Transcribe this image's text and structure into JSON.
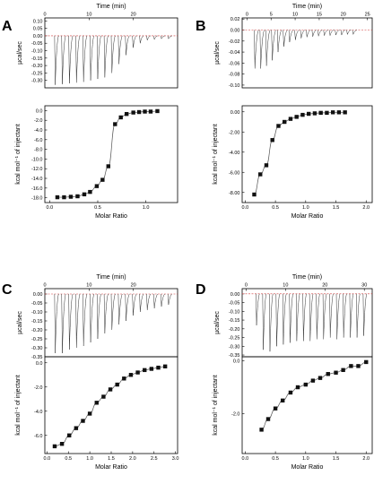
{
  "chart_data": [
    {
      "type": "scatter",
      "panel_label": "A",
      "top": {
        "xlabel": "Time (min)",
        "ylabel": "µcal/sec",
        "xlim": [
          0,
          30
        ],
        "ylim": [
          -0.35,
          0.12
        ],
        "xticks": [
          0,
          10,
          20
        ],
        "yticks": [
          0.1,
          0.05,
          0.0,
          -0.05,
          -0.1,
          -0.15,
          -0.2,
          -0.25,
          -0.3
        ],
        "ytick_labels": [
          "0.10",
          "0.05",
          "0.00",
          "-0.05",
          "-0.10",
          "-0.15",
          "-0.20",
          "-0.25",
          "-0.30"
        ],
        "injection_times": [
          2.2,
          3.8,
          5.4,
          7.0,
          8.6,
          10.2,
          11.8,
          13.4,
          15.0,
          16.6,
          18.2,
          19.8,
          21.4,
          23.0,
          24.6,
          26.2,
          27.8
        ],
        "peak_depths": [
          -0.33,
          -0.325,
          -0.32,
          -0.315,
          -0.31,
          -0.3,
          -0.29,
          -0.28,
          -0.25,
          -0.19,
          -0.13,
          -0.08,
          -0.05,
          -0.03,
          -0.025,
          -0.02,
          -0.02
        ]
      },
      "bottom": {
        "xlabel": "Molar Ratio",
        "ylabel": "kcal mol⁻¹ of injectant",
        "xlim": [
          -0.05,
          1.33
        ],
        "ylim": [
          -19.0,
          1.0
        ],
        "xticks": [
          0.0,
          0.5,
          1.0
        ],
        "xtick_labels": [
          "0.0",
          "0.5",
          "1.0"
        ],
        "yticks": [
          0,
          -2,
          -4,
          -6,
          -8,
          -10,
          -12,
          -14,
          -16,
          -18
        ],
        "ytick_labels": [
          "0.0",
          "-2.0",
          "-4.0",
          "-6.0",
          "-8.0",
          "-10.0",
          "-12.0",
          "-14.0",
          "-16.0",
          "-18.0"
        ],
        "x": [
          0.08,
          0.15,
          0.22,
          0.29,
          0.36,
          0.42,
          0.49,
          0.55,
          0.61,
          0.68,
          0.74,
          0.8,
          0.87,
          0.93,
          0.99,
          1.05,
          1.12
        ],
        "y": [
          -17.9,
          -17.9,
          -17.8,
          -17.7,
          -17.3,
          -16.8,
          -15.6,
          -14.3,
          -11.5,
          -2.8,
          -1.4,
          -0.7,
          -0.4,
          -0.3,
          -0.2,
          -0.2,
          -0.1
        ]
      }
    },
    {
      "type": "scatter",
      "panel_label": "B",
      "top": {
        "xlabel": "Time (min)",
        "ylabel": "µcal/sec",
        "xlim": [
          -1,
          26
        ],
        "ylim": [
          -0.105,
          0.022
        ],
        "xticks": [
          0,
          5,
          10,
          15,
          20,
          25
        ],
        "yticks": [
          0.02,
          0.0,
          -0.02,
          -0.04,
          -0.06,
          -0.08,
          -0.1
        ],
        "ytick_labels": [
          "0.02",
          "0.00",
          "-0.02",
          "-0.04",
          "-0.06",
          "-0.08",
          "-0.10"
        ],
        "injection_times": [
          1.5,
          2.7,
          3.9,
          5.1,
          6.3,
          7.5,
          8.7,
          9.9,
          11.1,
          12.3,
          13.5,
          14.7,
          15.9,
          17.1,
          18.3,
          19.5,
          20.7,
          21.9
        ],
        "peak_depths": [
          -0.07,
          -0.07,
          -0.065,
          -0.055,
          -0.04,
          -0.03,
          -0.022,
          -0.018,
          -0.015,
          -0.013,
          -0.012,
          -0.011,
          -0.01,
          -0.01,
          -0.009,
          -0.009,
          -0.008,
          -0.008
        ]
      },
      "bottom": {
        "xlabel": "Molar Ratio",
        "ylabel": "kcal mol⁻¹ of injectant",
        "xlim": [
          -0.05,
          2.1
        ],
        "ylim": [
          -9.0,
          0.6
        ],
        "xticks": [
          0.0,
          0.5,
          1.0,
          1.5,
          2.0
        ],
        "xtick_labels": [
          "0.0",
          "0.5",
          "1.0",
          "1.5",
          "2.0"
        ],
        "yticks": [
          0,
          -2,
          -4,
          -6,
          -8
        ],
        "ytick_labels": [
          "0.00",
          "-2.00",
          "-4.00",
          "-6.00",
          "-8.00"
        ],
        "x": [
          0.15,
          0.25,
          0.35,
          0.45,
          0.55,
          0.65,
          0.75,
          0.85,
          0.95,
          1.05,
          1.15,
          1.25,
          1.35,
          1.45,
          1.55,
          1.65
        ],
        "y": [
          -8.2,
          -6.2,
          -5.3,
          -2.8,
          -1.4,
          -1.0,
          -0.7,
          -0.5,
          -0.3,
          -0.2,
          -0.15,
          -0.1,
          -0.1,
          -0.05,
          -0.05,
          -0.05
        ]
      }
    },
    {
      "type": "scatter",
      "panel_label": "C",
      "top": {
        "xlabel": "Time (min)",
        "ylabel": "µcal/sec",
        "xlim": [
          0,
          30
        ],
        "ylim": [
          -0.35,
          0.03
        ],
        "xticks": [
          0,
          10,
          20
        ],
        "yticks": [
          0.0,
          -0.05,
          -0.1,
          -0.15,
          -0.2,
          -0.25,
          -0.3,
          -0.35
        ],
        "ytick_labels": [
          "0.00",
          "-0.05",
          "-0.10",
          "-0.15",
          "-0.20",
          "-0.25",
          "-0.30",
          "-0.35"
        ],
        "injection_times": [
          2.2,
          3.8,
          5.4,
          7.0,
          8.6,
          10.2,
          11.8,
          13.4,
          15.0,
          16.6,
          18.2,
          19.8,
          21.4,
          23.0,
          24.6,
          26.2,
          27.8
        ],
        "peak_depths": [
          -0.33,
          -0.33,
          -0.31,
          -0.3,
          -0.29,
          -0.27,
          -0.25,
          -0.22,
          -0.2,
          -0.17,
          -0.15,
          -0.12,
          -0.1,
          -0.09,
          -0.08,
          -0.07,
          -0.06
        ]
      },
      "bottom": {
        "xlabel": "Molar Ratio",
        "ylabel": "kcal mol⁻¹ of injectant",
        "xlim": [
          -0.05,
          3.05
        ],
        "ylim": [
          -7.5,
          0.5
        ],
        "xticks": [
          0.0,
          0.5,
          1.0,
          1.5,
          2.0,
          2.5,
          3.0
        ],
        "xtick_labels": [
          "0.0",
          "0.5",
          "1.0",
          "1.5",
          "2.0",
          "2.5",
          "3.0"
        ],
        "yticks": [
          0,
          -2,
          -4,
          -6
        ],
        "ytick_labels": [
          "0.0",
          "-2.0",
          "-4.0",
          "-6.0"
        ],
        "x": [
          0.18,
          0.35,
          0.52,
          0.68,
          0.84,
          1.0,
          1.16,
          1.32,
          1.48,
          1.64,
          1.8,
          1.96,
          2.12,
          2.28,
          2.44,
          2.6,
          2.76
        ],
        "y": [
          -6.9,
          -6.7,
          -6.0,
          -5.4,
          -4.8,
          -4.2,
          -3.3,
          -2.8,
          -2.2,
          -1.8,
          -1.3,
          -1.0,
          -0.8,
          -0.6,
          -0.5,
          -0.4,
          -0.3
        ]
      }
    },
    {
      "type": "scatter",
      "panel_label": "D",
      "top": {
        "xlabel": "Time (min)",
        "ylabel": "µcal/sec",
        "xlim": [
          -1,
          32
        ],
        "ylim": [
          -0.36,
          0.03
        ],
        "xticks": [
          0,
          10,
          20,
          30
        ],
        "yticks": [
          0.0,
          -0.05,
          -0.1,
          -0.15,
          -0.2,
          -0.25,
          -0.3,
          -0.35
        ],
        "ytick_labels": [
          "0.00",
          "-0.05",
          "-0.10",
          "-0.15",
          "-0.20",
          "-0.25",
          "-0.30",
          "-0.35"
        ],
        "injection_times": [
          2.5,
          4.2,
          5.9,
          7.6,
          9.3,
          11.0,
          12.7,
          14.4,
          16.1,
          17.8,
          19.5,
          21.2,
          22.9,
          24.6,
          26.3,
          28.0,
          29.7
        ],
        "peak_depths": [
          -0.18,
          -0.32,
          -0.33,
          -0.3,
          -0.29,
          -0.28,
          -0.27,
          -0.27,
          -0.27,
          -0.26,
          -0.26,
          -0.25,
          -0.26,
          -0.25,
          -0.25,
          -0.25,
          -0.24
        ]
      },
      "bottom": {
        "xlabel": "Molar Ratio",
        "ylabel": "kcal mol⁻¹ of injectant",
        "xlim": [
          -0.05,
          2.1
        ],
        "ylim": [
          -3.5,
          0.15
        ],
        "xticks": [
          0.0,
          0.5,
          1.0,
          1.5,
          2.0
        ],
        "xtick_labels": [
          "0.0",
          "0.5",
          "1.0",
          "1.5",
          "2.0"
        ],
        "yticks": [
          0,
          -2
        ],
        "ytick_labels": [
          "0.0",
          "-2.0"
        ],
        "x": [
          0.27,
          0.38,
          0.5,
          0.62,
          0.75,
          0.87,
          1.0,
          1.12,
          1.24,
          1.37,
          1.5,
          1.62,
          1.75,
          1.87,
          2.0
        ],
        "y": [
          -2.6,
          -2.2,
          -1.8,
          -1.5,
          -1.2,
          -1.0,
          -0.9,
          -0.75,
          -0.65,
          -0.5,
          -0.45,
          -0.35,
          -0.2,
          -0.2,
          -0.05
        ]
      }
    }
  ]
}
